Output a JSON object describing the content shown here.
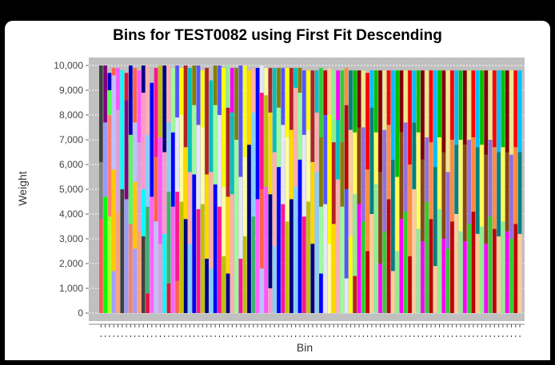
{
  "colors": {
    "background": "#000000",
    "panel": "#ffffff",
    "plot_background": "#c0c0c0",
    "gridline": "#ffffff",
    "palette": [
      "#ff5555",
      "#5555ff",
      "#55ff55",
      "#ffff55",
      "#ff55ff",
      "#55ffff",
      "#ffafaf",
      "#808080",
      "#c00000",
      "#0000c0",
      "#00c000",
      "#c0c000",
      "#c000c0",
      "#00c0c0",
      "#404040",
      "#ff8c3c",
      "#ff60ff",
      "#a0ffa0",
      "#ffffa0",
      "#a0a0ff",
      "#ff00ff",
      "#00ffff",
      "#ff0000",
      "#0000ff",
      "#00ff00",
      "#ffff00",
      "#ffc800",
      "#8b4513",
      "#ff99cc",
      "#ccffff",
      "#99ff99",
      "#9999ff",
      "#ffcc99",
      "#c0c0ff",
      "#800000",
      "#000080",
      "#008000",
      "#808000",
      "#800080",
      "#008080",
      "#ff6347",
      "#7fffd4",
      "#ffd700",
      "#4169e1",
      "#32cd32",
      "#dc143c",
      "#00bfff",
      "#ff1493",
      "#adff2f",
      "#b22222",
      "#ffa07a",
      "#9370db",
      "#3cb371",
      "#f08080",
      "#e6e6fa",
      "#fa8072",
      "#90ee90",
      "#dda0dd",
      "#f0e68c",
      "#87cefa"
    ]
  },
  "chart_data": {
    "type": "bar",
    "stacked": true,
    "title": "Bins for TEST0082 using First Fit Descending",
    "xlabel": "Bin",
    "ylabel": "Weight",
    "ylim": [
      0,
      10000
    ],
    "yticks": [
      0,
      1000,
      2000,
      3000,
      4000,
      5000,
      6000,
      7000,
      8000,
      9000,
      10000
    ],
    "ytick_labels": [
      "0",
      "1,000",
      "2,000",
      "3,000",
      "4,000",
      "5,000",
      "6,000",
      "7,000",
      "8,000",
      "9,000",
      "10,000"
    ],
    "grid": true,
    "bin_count": 100,
    "bins": [
      [
        3800,
        2300,
        3900
      ],
      [
        4700,
        3000,
        2300
      ],
      [
        3900,
        4100,
        1000,
        700
      ],
      [
        1700,
        4100,
        3800,
        300
      ],
      [
        4100,
        4100,
        1700
      ],
      [
        5000,
        4800
      ],
      [
        4600,
        4000,
        1100
      ],
      [
        3600,
        3600,
        2800
      ],
      [
        2600,
        2700,
        2400,
        2200
      ],
      [
        3300,
        3600,
        2900
      ],
      [
        3100,
        1900,
        3900,
        1100
      ],
      [
        800,
        3500,
        2900,
        2800
      ],
      [
        4700,
        4600
      ],
      [
        3700,
        2600,
        3600
      ],
      [
        2800,
        4300,
        2900
      ],
      [
        3200,
        3300,
        3500
      ],
      [
        1200,
        3700,
        2800,
        2300
      ],
      [
        4300,
        3000,
        2600
      ],
      [
        1300,
        3600,
        3000,
        2100
      ],
      [
        4500,
        3500,
        1900
      ],
      [
        3800,
        2900,
        3300
      ],
      [
        2800,
        2900,
        4200
      ],
      [
        5600,
        2800,
        1600
      ],
      [
        4200,
        3400,
        2400
      ],
      [
        4400,
        3100,
        2300
      ],
      [
        2200,
        3400,
        4300
      ],
      [
        1800,
        3900,
        3700
      ],
      [
        5200,
        3200,
        1600
      ],
      [
        4300,
        3700,
        2000
      ],
      [
        2300,
        2800,
        4800
      ],
      [
        1600,
        3100,
        3600,
        1700
      ],
      [
        4800,
        3300,
        1800
      ],
      [
        7000,
        2900
      ],
      [
        2200,
        3300,
        4500
      ],
      [
        3100,
        3200,
        3700
      ],
      [
        6800,
        3000
      ],
      [
        3900,
        4200,
        1800
      ],
      [
        4600,
        5300
      ],
      [
        1800,
        3200,
        3900,
        1100
      ],
      [
        5100,
        3700,
        1100
      ],
      [
        1000,
        3800,
        3300,
        1800
      ],
      [
        2700,
        3800,
        3400
      ],
      [
        5900,
        2400,
        1600
      ],
      [
        4400,
        3200,
        2300
      ],
      [
        3700,
        3400,
        2800
      ],
      [
        4600,
        2800,
        2500
      ],
      [
        5100,
        4000,
        800
      ],
      [
        6200,
        2700,
        1000
      ],
      [
        3900,
        3300,
        2600
      ],
      [
        4500,
        2900,
        2400
      ],
      [
        2800,
        3300,
        3700
      ],
      [
        5700,
        2400,
        1700
      ],
      [
        1600,
        2700,
        2800,
        2800
      ],
      [
        4400,
        3600,
        1800
      ],
      [
        2800,
        5200,
        1900
      ],
      [
        3600,
        3300,
        2900
      ],
      [
        5400,
        2400,
        2000
      ],
      [
        4300,
        2600,
        2900
      ],
      [
        1400,
        3600,
        3400,
        1500
      ],
      [
        3100,
        4300,
        2400
      ],
      [
        1500,
        3300,
        2500,
        2500
      ],
      [
        4400,
        3100,
        2300
      ],
      [
        3700,
        3800,
        2300
      ],
      [
        2500,
        3300,
        3900
      ],
      [
        4000,
        4300,
        1500
      ],
      [
        5200,
        2100,
        2500
      ],
      [
        2000,
        3700,
        4100
      ],
      [
        3300,
        4100,
        2400
      ],
      [
        4600,
        3000,
        2200
      ],
      [
        1700,
        4500,
        3600
      ],
      [
        2500,
        3000,
        4300
      ],
      [
        3800,
        3500,
        2500
      ],
      [
        4100,
        3600,
        2100
      ],
      [
        2300,
        3700,
        3800
      ],
      [
        5000,
        2700,
        2100
      ],
      [
        3400,
        3900,
        2500
      ],
      [
        2900,
        3300,
        3600
      ],
      [
        4500,
        2600,
        2700
      ],
      [
        3800,
        3100,
        2900
      ],
      [
        1900,
        4000,
        3900
      ],
      [
        4200,
        2900,
        2700
      ],
      [
        3000,
        3500,
        3300
      ],
      [
        2600,
        3100,
        4100
      ],
      [
        3700,
        3300,
        2800
      ],
      [
        4000,
        2800,
        3000
      ],
      [
        3300,
        3700,
        2800
      ],
      [
        2900,
        3900,
        3000
      ],
      [
        3600,
        3400,
        2800
      ],
      [
        4100,
        3000,
        2700
      ],
      [
        3200,
        3500,
        3100
      ],
      [
        3500,
        3300,
        3000
      ],
      [
        2800,
        3600,
        3400
      ],
      [
        3900,
        3100,
        2800
      ],
      [
        3400,
        3300,
        3100
      ],
      [
        3100,
        3400,
        3300
      ],
      [
        3700,
        3000,
        3100
      ],
      [
        3300,
        3200,
        3300
      ],
      [
        3000,
        3400,
        3400
      ],
      [
        3600,
        3100,
        3100
      ],
      [
        3200,
        3300,
        3300
      ]
    ]
  }
}
